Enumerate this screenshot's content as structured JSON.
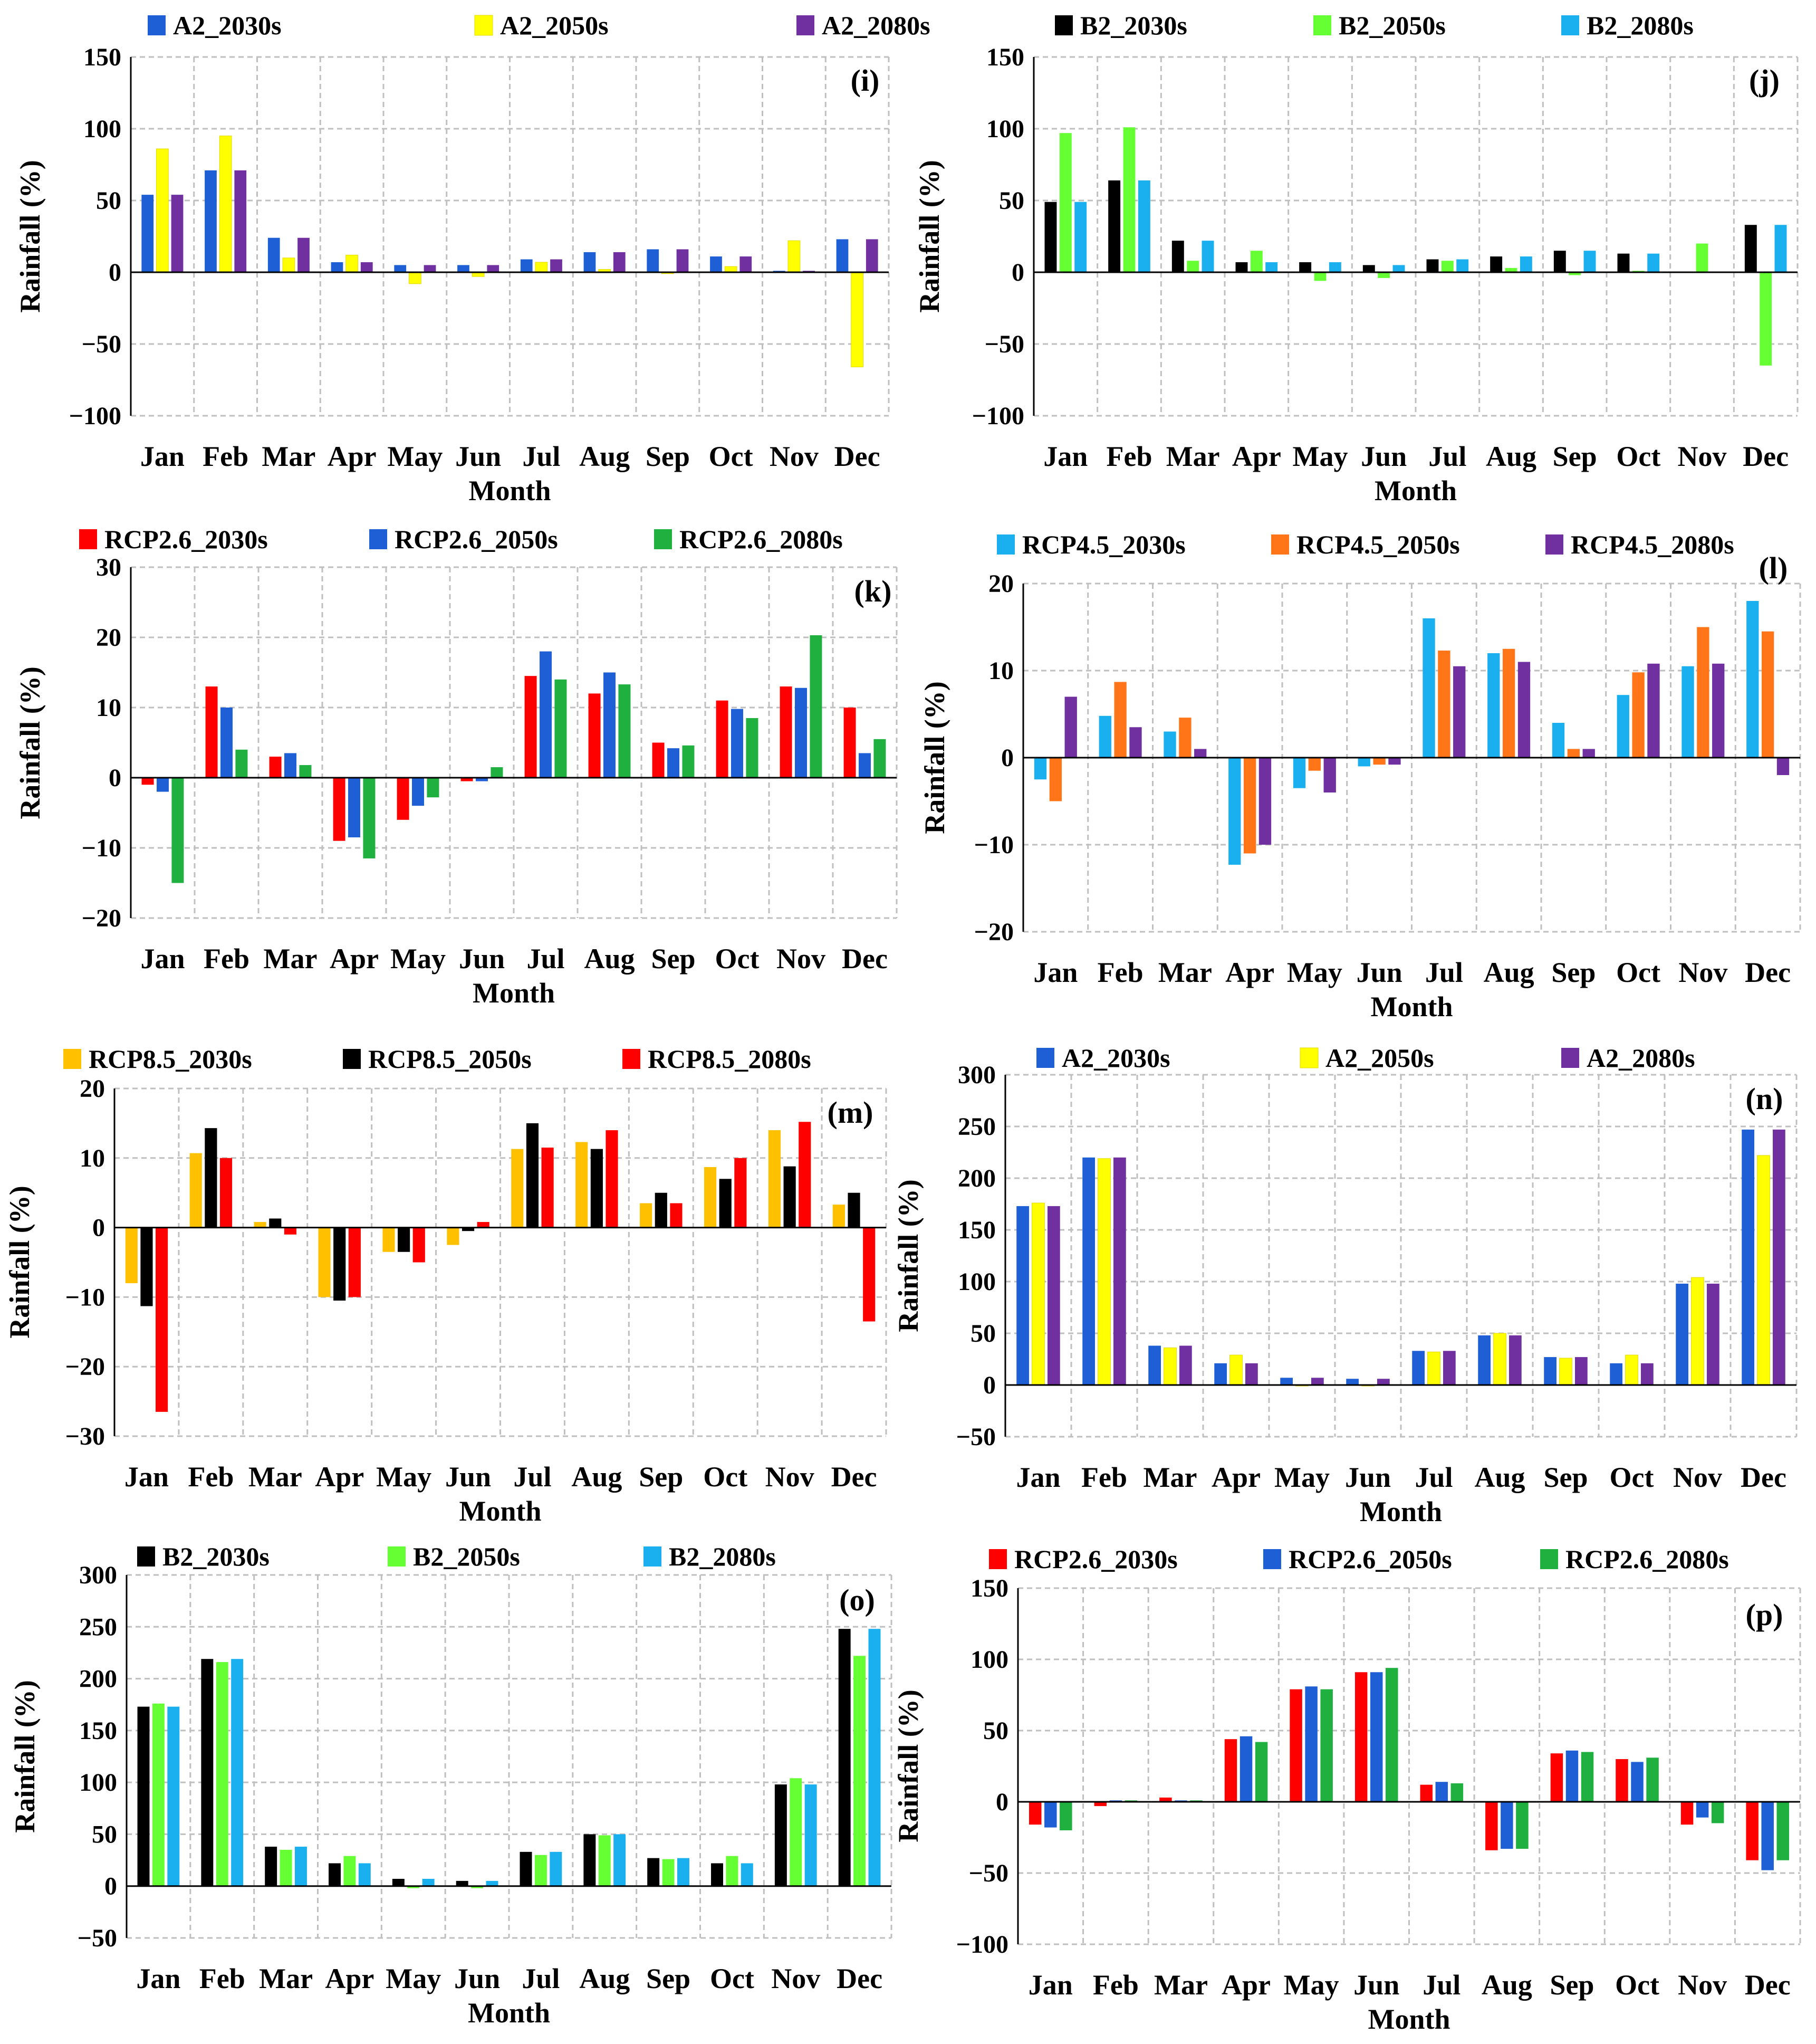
{
  "figure": {
    "panels": [
      {
        "label": "(i)",
        "xlabel": "Month",
        "ylabel": "Rainfall (%)"
      },
      {
        "label": "(j)",
        "xlabel": "Month",
        "ylabel": "Rainfall (%)"
      },
      {
        "label": "(k)",
        "xlabel": "Month",
        "ylabel": "Rainfall (%)"
      },
      {
        "label": "(l)",
        "xlabel": "Month",
        "ylabel": "Rainfall (%)"
      },
      {
        "label": "(m)",
        "xlabel": "Month",
        "ylabel": "Rainfall (%)"
      },
      {
        "label": "(n)",
        "xlabel": "Month",
        "ylabel": "Rainfall (%)"
      },
      {
        "label": "(o)",
        "xlabel": "Month",
        "ylabel": "Rainfall (%)"
      },
      {
        "label": "(p)",
        "xlabel": "Month",
        "ylabel": "Rainfall (%)"
      }
    ]
  },
  "chart_data": [
    {
      "type": "bar",
      "panel_label": "(i)",
      "categories": [
        "Jan",
        "Feb",
        "Mar",
        "Apr",
        "May",
        "Jun",
        "Jul",
        "Aug",
        "Sep",
        "Oct",
        "Nov",
        "Dec"
      ],
      "xlabel": "Month",
      "ylabel": "Rainfall (%)",
      "ylim": [
        -100,
        150
      ],
      "yticks": [
        -100,
        -50,
        0,
        50,
        100,
        150
      ],
      "ytick_labels": [
        "−100",
        "−50",
        "0",
        "50",
        "100",
        "150"
      ],
      "grid": true,
      "legend_position": "top",
      "series": [
        {
          "name": "A2_2030s",
          "color": "#1F5FD6",
          "values": [
            54,
            71,
            24,
            7,
            5,
            5,
            9,
            14,
            16,
            11,
            1,
            23
          ]
        },
        {
          "name": "A2_2050s",
          "color": "#FFFF00",
          "values": [
            86,
            95,
            10,
            12,
            -8,
            -3,
            7,
            2,
            -1,
            4,
            22,
            -66
          ]
        },
        {
          "name": "A2_2080s",
          "color": "#7030A0",
          "values": [
            54,
            71,
            24,
            7,
            5,
            5,
            9,
            14,
            16,
            11,
            1,
            23
          ]
        }
      ]
    },
    {
      "type": "bar",
      "panel_label": "(j)",
      "categories": [
        "Jan",
        "Feb",
        "Mar",
        "Apr",
        "May",
        "Jun",
        "Jul",
        "Aug",
        "Sep",
        "Oct",
        "Nov",
        "Dec"
      ],
      "xlabel": "Month",
      "ylabel": "Rainfall (%)",
      "ylim": [
        -100,
        150
      ],
      "yticks": [
        -100,
        -50,
        0,
        50,
        100,
        150
      ],
      "ytick_labels": [
        "−100",
        "−50",
        "0",
        "50",
        "100",
        "150"
      ],
      "grid": true,
      "legend_position": "top",
      "series": [
        {
          "name": "B2_2030s",
          "color": "#000000",
          "values": [
            49,
            64,
            22,
            7,
            7,
            5,
            9,
            11,
            15,
            13,
            0,
            33
          ]
        },
        {
          "name": "B2_2050s",
          "color": "#66FF33",
          "values": [
            97,
            101,
            8,
            15,
            -6,
            -4,
            8,
            3,
            -2,
            1,
            20,
            -65
          ]
        },
        {
          "name": "B2_2080s",
          "color": "#1AB0F0",
          "values": [
            49,
            64,
            22,
            7,
            7,
            5,
            9,
            11,
            15,
            13,
            0,
            33
          ]
        }
      ]
    },
    {
      "type": "bar",
      "panel_label": "(k)",
      "categories": [
        "Jan",
        "Feb",
        "Mar",
        "Apr",
        "May",
        "Jun",
        "Jul",
        "Aug",
        "Sep",
        "Oct",
        "Nov",
        "Dec"
      ],
      "xlabel": "Month",
      "ylabel": "Rainfall (%)",
      "ylim": [
        -20,
        30
      ],
      "yticks": [
        -20,
        -10,
        0,
        10,
        20,
        30
      ],
      "ytick_labels": [
        "−20",
        "−10",
        "0",
        "10",
        "20",
        "30"
      ],
      "grid": true,
      "legend_position": "top",
      "series": [
        {
          "name": "RCP2.6_2030s",
          "color": "#FF0000",
          "values": [
            -1,
            13,
            3,
            -9,
            -6,
            -0.5,
            14.5,
            12,
            5,
            11,
            13,
            10
          ]
        },
        {
          "name": "RCP2.6_2050s",
          "color": "#1F5FD6",
          "values": [
            -2,
            10,
            3.5,
            -8.5,
            -4,
            -0.5,
            18,
            15,
            4.2,
            9.8,
            12.8,
            3.5
          ]
        },
        {
          "name": "RCP2.6_2080s",
          "color": "#1FB040",
          "values": [
            -15,
            4,
            1.8,
            -11.5,
            -2.8,
            1.5,
            14,
            13.3,
            4.6,
            8.5,
            20.3,
            5.5
          ]
        }
      ]
    },
    {
      "type": "bar",
      "panel_label": "(l)",
      "categories": [
        "Jan",
        "Feb",
        "Mar",
        "Apr",
        "May",
        "Jun",
        "Jul",
        "Aug",
        "Sep",
        "Oct",
        "Nov",
        "Dec"
      ],
      "xlabel": "Month",
      "ylabel": "Rainfall (%)",
      "ylim": [
        -20,
        20
      ],
      "yticks": [
        -20,
        -10,
        0,
        10,
        20
      ],
      "ytick_labels": [
        "−20",
        "−10",
        "0",
        "10",
        "20"
      ],
      "grid": true,
      "legend_position": "top",
      "series": [
        {
          "name": "RCP4.5_2030s",
          "color": "#1AB0F0",
          "values": [
            -2.5,
            4.8,
            3,
            -12.3,
            -3.5,
            -1,
            16,
            12,
            4,
            7.2,
            10.5,
            18
          ]
        },
        {
          "name": "RCP4.5_2050s",
          "color": "#FF7518",
          "values": [
            -5,
            8.7,
            4.6,
            -11,
            -1.5,
            -0.8,
            12.3,
            12.5,
            1,
            9.8,
            15,
            14.5
          ]
        },
        {
          "name": "RCP4.5_2080s",
          "color": "#7030A0",
          "values": [
            7,
            3.5,
            1,
            -10,
            -4,
            -0.8,
            10.5,
            11,
            1,
            10.8,
            10.8,
            -2
          ]
        }
      ]
    },
    {
      "type": "bar",
      "panel_label": "(m)",
      "categories": [
        "Jan",
        "Feb",
        "Mar",
        "Apr",
        "May",
        "Jun",
        "Jul",
        "Aug",
        "Sep",
        "Oct",
        "Nov",
        "Dec"
      ],
      "xlabel": "Month",
      "ylabel": "Rainfall (%)",
      "ylim": [
        -30,
        20
      ],
      "yticks": [
        -30,
        -20,
        -10,
        0,
        10,
        20
      ],
      "ytick_labels": [
        "−30",
        "−20",
        "−10",
        "0",
        "10",
        "20"
      ],
      "grid": true,
      "legend_position": "top",
      "series": [
        {
          "name": "RCP8.5_2030s",
          "color": "#FFC000",
          "values": [
            -8,
            10.7,
            0.8,
            -10,
            -3.5,
            -2.5,
            11.3,
            12.3,
            3.5,
            8.7,
            14,
            3.3
          ]
        },
        {
          "name": "RCP8.5_2050s",
          "color": "#000000",
          "values": [
            -11.3,
            14.3,
            1.3,
            -10.5,
            -3.5,
            -0.5,
            15,
            11.3,
            5,
            7,
            8.8,
            5
          ]
        },
        {
          "name": "RCP8.5_2080s",
          "color": "#FF0000",
          "values": [
            -26.5,
            10,
            -1,
            -10,
            -5,
            0.8,
            11.5,
            14,
            3.5,
            10,
            15.2,
            -13.5
          ]
        }
      ]
    },
    {
      "type": "bar",
      "panel_label": "(n)",
      "categories": [
        "Jan",
        "Feb",
        "Mar",
        "Apr",
        "May",
        "Jun",
        "Jul",
        "Aug",
        "Sep",
        "Oct",
        "Nov",
        "Dec"
      ],
      "xlabel": "Month",
      "ylabel": "Rainfall (%)",
      "ylim": [
        -50,
        300
      ],
      "yticks": [
        -50,
        0,
        50,
        100,
        150,
        200,
        250,
        300
      ],
      "ytick_labels": [
        "−50",
        "0",
        "50",
        "100",
        "150",
        "200",
        "250",
        "300"
      ],
      "grid": true,
      "legend_position": "top",
      "series": [
        {
          "name": "A2_2030s",
          "color": "#1F5FD6",
          "values": [
            173,
            220,
            38,
            21,
            7,
            6,
            33,
            48,
            27,
            21,
            98,
            247
          ]
        },
        {
          "name": "A2_2050s",
          "color": "#FFFF00",
          "values": [
            176,
            219,
            36,
            29,
            -1,
            -1,
            32,
            50,
            26,
            29,
            104,
            222
          ]
        },
        {
          "name": "A2_2080s",
          "color": "#7030A0",
          "values": [
            173,
            220,
            38,
            21,
            7,
            6,
            33,
            48,
            27,
            21,
            98,
            247
          ]
        }
      ]
    },
    {
      "type": "bar",
      "panel_label": "(o)",
      "categories": [
        "Jan",
        "Feb",
        "Mar",
        "Apr",
        "May",
        "Jun",
        "Jul",
        "Aug",
        "Sep",
        "Oct",
        "Nov",
        "Dec"
      ],
      "xlabel": "Month",
      "ylabel": "Rainfall (%)",
      "ylim": [
        -50,
        300
      ],
      "yticks": [
        -50,
        0,
        50,
        100,
        150,
        200,
        250,
        300
      ],
      "ytick_labels": [
        "−50",
        "0",
        "50",
        "100",
        "150",
        "200",
        "250",
        "300"
      ],
      "grid": true,
      "legend_position": "top",
      "series": [
        {
          "name": "B2_2030s",
          "color": "#000000",
          "values": [
            173,
            219,
            38,
            22,
            7,
            5,
            33,
            50,
            27,
            22,
            98,
            248
          ]
        },
        {
          "name": "B2_2050s",
          "color": "#66FF33",
          "values": [
            176,
            216,
            35,
            29,
            -2,
            -2,
            30,
            49,
            26,
            29,
            104,
            222
          ]
        },
        {
          "name": "B2_2080s",
          "color": "#1AB0F0",
          "values": [
            173,
            219,
            38,
            22,
            7,
            5,
            33,
            50,
            27,
            22,
            98,
            248
          ]
        }
      ]
    },
    {
      "type": "bar",
      "panel_label": "(p)",
      "categories": [
        "Jan",
        "Feb",
        "Mar",
        "Apr",
        "May",
        "Jun",
        "Jul",
        "Aug",
        "Sep",
        "Oct",
        "Nov",
        "Dec"
      ],
      "xlabel": "Month",
      "ylabel": "Rainfall (%)",
      "ylim": [
        -100,
        150
      ],
      "yticks": [
        -100,
        -50,
        0,
        50,
        100,
        150
      ],
      "ytick_labels": [
        "−100",
        "−50",
        "0",
        "50",
        "100",
        "150"
      ],
      "grid": true,
      "legend_position": "top",
      "series": [
        {
          "name": "RCP2.6_2030s",
          "color": "#FF0000",
          "values": [
            -16,
            -3,
            3,
            44,
            79,
            91,
            12,
            -34,
            34,
            30,
            -16,
            -41
          ]
        },
        {
          "name": "RCP2.6_2050s",
          "color": "#1F5FD6",
          "values": [
            -18,
            1,
            1,
            46,
            81,
            91,
            14,
            -33,
            36,
            28,
            -11,
            -48
          ]
        },
        {
          "name": "RCP2.6_2080s",
          "color": "#1FB040",
          "values": [
            -20,
            1,
            1,
            42,
            79,
            94,
            13,
            -33,
            35,
            31,
            -15,
            -41
          ]
        }
      ]
    }
  ]
}
